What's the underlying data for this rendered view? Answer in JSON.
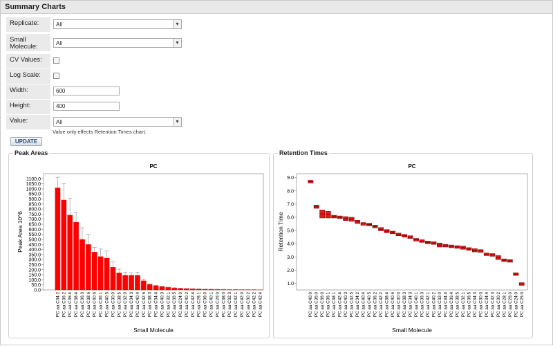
{
  "panel": {
    "title": "Summary Charts"
  },
  "form": {
    "replicate": {
      "label": "Replicate:",
      "value": "All"
    },
    "small_molecule": {
      "label": "Small Molecule:",
      "value": "All"
    },
    "cv_values": {
      "label": "CV Values:",
      "checked": false
    },
    "log_scale": {
      "label": "Log Scale:",
      "checked": false
    },
    "width": {
      "label": "Width:",
      "value": "600"
    },
    "height": {
      "label": "Height:",
      "value": "400"
    },
    "value": {
      "label": "Value:",
      "value": "All"
    },
    "hint": "Value only effects Retention Times chart.",
    "update_label": "UPDATE"
  },
  "colors": {
    "bar": "#ff0000",
    "bar_edge": "#cc0000",
    "error": "#999999",
    "box_dark": "#7a0000",
    "box": "#e8191a"
  },
  "chart_data": [
    {
      "type": "bar",
      "panel": "Peak Areas",
      "title": "PC",
      "xlabel": "Small Molecule",
      "ylabel": "Peak Area 10^6",
      "ylim": [
        0,
        1150
      ],
      "yticks": [
        "0.0",
        "50.0",
        "100.0",
        "150.0",
        "200.0",
        "250.0",
        "300.0",
        "350.0",
        "400.0",
        "450.0",
        "500.0",
        "550.0",
        "600.0",
        "650.0",
        "700.0",
        "750.0",
        "800.0",
        "850.0",
        "900.0",
        "950.0",
        "1000.0",
        "1050.0",
        "1100.0"
      ],
      "categories": [
        "PC aa C34:2",
        "PC aa C36:2",
        "PC aa C36:4",
        "PC aa C38:4",
        "PC aa C36:3",
        "PC aa C38:6",
        "PC aa C40:6",
        "PC aa C36:1",
        "PC aa C40:5",
        "PC aa C30:0",
        "PC aa C38:5",
        "PC aa C32:0",
        "PC aa C34:3",
        "PC aa C40:4",
        "PC aa C42:6",
        "PC aa C38:3",
        "PC aa C34:4",
        "PC aa C40:3",
        "PC aa C32:1",
        "PC aa C36:5",
        "PC aa C24:0",
        "PC aa C40:2",
        "PC aa C42:4",
        "PC aa C28:1",
        "PC aa C36:0",
        "PC aa C40:1",
        "PC aa C26:0",
        "PC aa C38:0",
        "PC aa C32:3",
        "PC aa C42:1",
        "PC aa C42:0",
        "PC aa C30:2",
        "PC aa C42:2",
        "PC aa C42:4"
      ],
      "values": [
        1010,
        890,
        740,
        670,
        500,
        450,
        375,
        330,
        315,
        225,
        170,
        145,
        145,
        145,
        90,
        55,
        42,
        34,
        26,
        20,
        16,
        14,
        12,
        10,
        8,
        7,
        6,
        5,
        4,
        4,
        3,
        3,
        3,
        2
      ],
      "errors": [
        105,
        160,
        165,
        95,
        115,
        100,
        45,
        75,
        70,
        55,
        35,
        28,
        25,
        30,
        18,
        5,
        4,
        3,
        2,
        2,
        2,
        1,
        1,
        1,
        1,
        1,
        1,
        1,
        1,
        1,
        1,
        1,
        1,
        1
      ]
    },
    {
      "type": "boxplot",
      "panel": "Retention Times",
      "title": "PC",
      "xlabel": "Small Molecule",
      "ylabel": "Retention Time",
      "ylim": [
        0.5,
        9.3
      ],
      "yticks": [
        "1.0",
        "2.0",
        "3.0",
        "4.0",
        "5.0",
        "6.0",
        "7.0",
        "8.0",
        "9.0"
      ],
      "categories": [
        "PC aa C40:0",
        "PC aa C35:0",
        "PC aa C36:0",
        "PC aa C36:1",
        "PC aa C38:1",
        "PC aa C42:4",
        "PC aa C40:3",
        "PC aa C42:5",
        "PC aa C34:2",
        "PC aa C40:4",
        "PC aa C40:5",
        "PC aa C36:2",
        "PC aa C42:2",
        "PC aa C38:4",
        "PC aa C40:6",
        "PC aa C30:0",
        "PC aa C38:3",
        "PC aa C34:3",
        "PC aa C40:1",
        "PC aa C36:3",
        "PC aa C42:1",
        "PC aa C40:2",
        "PC aa C32:0",
        "PC aa C34:4",
        "PC aa C36:4",
        "PC aa C38:5",
        "PC aa C32:1",
        "PC aa C36:5",
        "PC aa C34:3",
        "PC aa C30:0",
        "PC aa C34:4",
        "PC aa C32:3",
        "PC aa C30:2",
        "PC aa C28:1",
        "PC aa C26:0",
        "PC aa C24:0",
        "PC aa C25:0"
      ],
      "medians": [
        8.7,
        6.8,
        6.25,
        6.2,
        6.05,
        6.0,
        5.9,
        5.85,
        5.65,
        5.5,
        5.45,
        5.3,
        5.1,
        4.95,
        4.85,
        4.7,
        4.6,
        4.5,
        4.3,
        4.2,
        4.1,
        4.05,
        3.9,
        3.85,
        3.8,
        3.75,
        3.7,
        3.6,
        3.5,
        3.45,
        3.2,
        3.15,
        2.95,
        2.75,
        2.7,
        1.7,
        0.95
      ],
      "spreads": [
        0.1,
        0.12,
        0.3,
        0.25,
        0.1,
        0.1,
        0.15,
        0.15,
        0.12,
        0.1,
        0.1,
        0.1,
        0.12,
        0.12,
        0.1,
        0.1,
        0.1,
        0.1,
        0.1,
        0.1,
        0.1,
        0.1,
        0.15,
        0.1,
        0.1,
        0.1,
        0.12,
        0.1,
        0.12,
        0.1,
        0.1,
        0.1,
        0.15,
        0.1,
        0.1,
        0.1,
        0.1
      ]
    }
  ]
}
